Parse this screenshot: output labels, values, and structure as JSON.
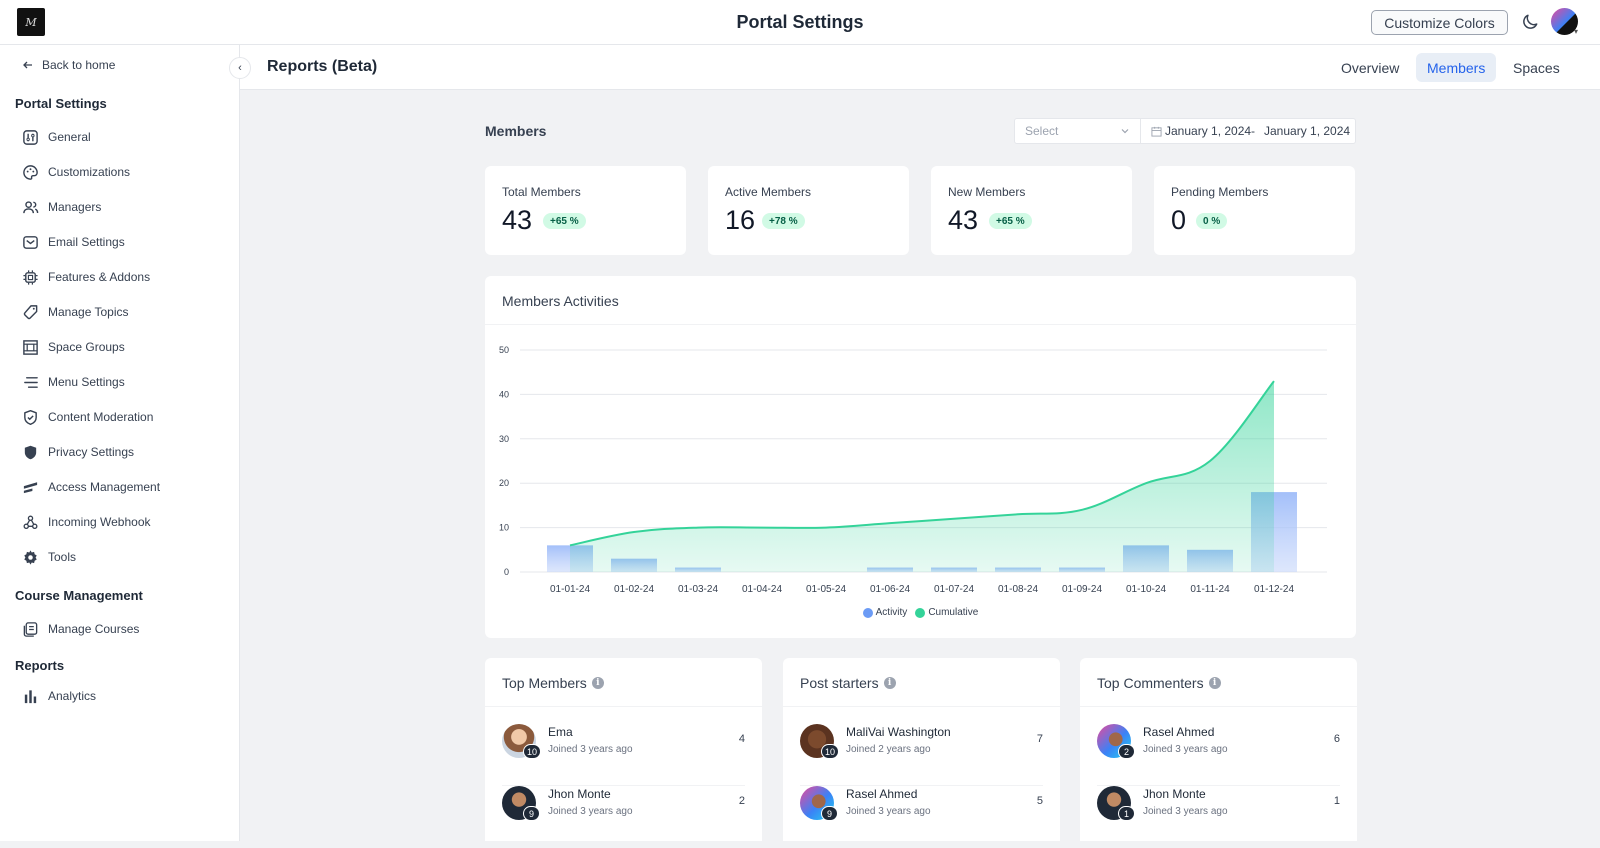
{
  "app": {
    "title": "Portal Settings",
    "logo_text": "M",
    "customize_label": "Customize Colors",
    "theme_icon": "moon-icon"
  },
  "sidebar": {
    "back_label": "Back to home",
    "portal_section": "Portal Settings",
    "items": [
      {
        "label": "General",
        "icon": "general-icon"
      },
      {
        "label": "Customizations",
        "icon": "palette-icon"
      },
      {
        "label": "Managers",
        "icon": "users-icon"
      },
      {
        "label": "Email Settings",
        "icon": "mail-icon"
      },
      {
        "label": "Features & Addons",
        "icon": "cpu-icon"
      },
      {
        "label": "Manage Topics",
        "icon": "tag-icon"
      },
      {
        "label": "Space Groups",
        "icon": "group-icon"
      },
      {
        "label": "Menu Settings",
        "icon": "menu-icon"
      },
      {
        "label": "Content Moderation",
        "icon": "shield-check-icon"
      },
      {
        "label": "Privacy Settings",
        "icon": "shield-icon"
      },
      {
        "label": "Access Management",
        "icon": "access-icon"
      },
      {
        "label": "Incoming Webhook",
        "icon": "webhook-icon"
      },
      {
        "label": "Tools",
        "icon": "gear-icon"
      }
    ],
    "course_section": "Course Management",
    "course_items": [
      {
        "label": "Manage Courses",
        "icon": "courses-icon"
      }
    ],
    "reports_section": "Reports",
    "reports_items": [
      {
        "label": "Analytics",
        "icon": "bar-chart-icon"
      }
    ]
  },
  "subheader": {
    "title": "Reports (Beta)",
    "tabs": [
      {
        "label": "Overview"
      },
      {
        "label": "Members"
      },
      {
        "label": "Spaces"
      }
    ],
    "active_tab": "Members"
  },
  "main": {
    "heading": "Members",
    "select_placeholder": "Select",
    "date_start": "January 1, 2024",
    "date_sep": "-",
    "date_end": "January 1, 2024",
    "stats": [
      {
        "label": "Total Members",
        "value": "43",
        "badge": "+65 %"
      },
      {
        "label": "Active Members",
        "value": "16",
        "badge": "+78 %"
      },
      {
        "label": "New Members",
        "value": "43",
        "badge": "+65 %"
      },
      {
        "label": "Pending Members",
        "value": "0",
        "badge": "0 %"
      }
    ],
    "chart_title": "Members Activities",
    "lists": [
      {
        "title": "Top Members",
        "rows": [
          {
            "name": "Ema",
            "sub": "Joined 3 years ago",
            "count": "4",
            "badge": "10"
          },
          {
            "name": "Jhon Monte",
            "sub": "Joined 3 years ago",
            "count": "2",
            "badge": "9"
          }
        ]
      },
      {
        "title": "Post starters",
        "rows": [
          {
            "name": "MaliVai Washington",
            "sub": "Joined 2 years ago",
            "count": "7",
            "badge": "10"
          },
          {
            "name": "Rasel Ahmed",
            "sub": "Joined 3 years ago",
            "count": "5",
            "badge": "9"
          }
        ]
      },
      {
        "title": "Top Commenters",
        "rows": [
          {
            "name": "Rasel Ahmed",
            "sub": "Joined 3 years ago",
            "count": "6",
            "badge": "2"
          },
          {
            "name": "Jhon Monte",
            "sub": "Joined 3 years ago",
            "count": "1",
            "badge": "1"
          }
        ]
      }
    ]
  },
  "chart_data": {
    "type": "line",
    "title": "Members Activities",
    "categories": [
      "01-01-24",
      "01-02-24",
      "01-03-24",
      "01-04-24",
      "01-05-24",
      "01-06-24",
      "01-07-24",
      "01-08-24",
      "01-09-24",
      "01-10-24",
      "01-11-24",
      "01-12-24"
    ],
    "y_ticks": [
      0,
      10,
      20,
      30,
      40,
      50
    ],
    "ylim": [
      0,
      50
    ],
    "grid": true,
    "legend_position": "bottom",
    "series": [
      {
        "name": "Activity",
        "type": "bar",
        "color": "#6b9bf5",
        "values": [
          6,
          3,
          1,
          0,
          0,
          1,
          1,
          1,
          1,
          6,
          5,
          18
        ]
      },
      {
        "name": "Cumulative",
        "type": "area",
        "color": "#34d399",
        "values": [
          6,
          9,
          10,
          10,
          10,
          11,
          12,
          13,
          14,
          20,
          25,
          43
        ]
      }
    ]
  }
}
